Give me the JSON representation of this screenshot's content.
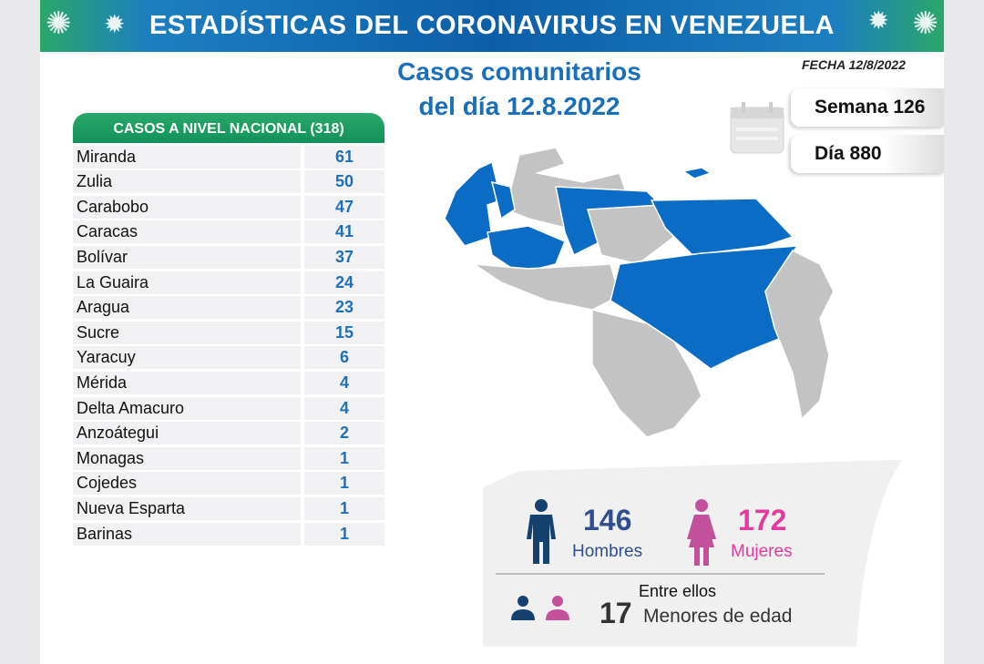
{
  "header": {
    "title": "ESTADÍSTICAS DEL CORONAVIRUS EN VENEZUELA"
  },
  "subtitle": {
    "line1": "Casos comunitarios",
    "line2": "del día 12.8.2022"
  },
  "fecha": "FECHA 12/8/2022",
  "semana": "Semana 126",
  "dia": "Día 880",
  "table": {
    "header": "CASOS A NIVEL NACIONAL  (318)",
    "rows": [
      {
        "state": "Miranda",
        "cases": "61"
      },
      {
        "state": "Zulia",
        "cases": "50"
      },
      {
        "state": "Carabobo",
        "cases": "47"
      },
      {
        "state": "Caracas",
        "cases": "41"
      },
      {
        "state": "Bolívar",
        "cases": "37"
      },
      {
        "state": "La Guaira",
        "cases": "24"
      },
      {
        "state": "Aragua",
        "cases": "23"
      },
      {
        "state": "Sucre",
        "cases": "15"
      },
      {
        "state": "Yaracuy",
        "cases": "6"
      },
      {
        "state": "Mérida",
        "cases": "4"
      },
      {
        "state": "Delta Amacuro",
        "cases": "4"
      },
      {
        "state": "Anzoátegui",
        "cases": "2"
      },
      {
        "state": "Monagas",
        "cases": "1"
      },
      {
        "state": "Cojedes",
        "cases": "1"
      },
      {
        "state": "Nueva Esparta",
        "cases": "1"
      },
      {
        "state": "Barinas",
        "cases": "1"
      }
    ]
  },
  "stats": {
    "men": "146",
    "men_label": "Hombres",
    "women": "172",
    "women_label": "Mujeres",
    "among": "Entre ellos",
    "minors": "17",
    "minors_label": "Menores de edad"
  },
  "colors": {
    "affected": "#0a6cc4",
    "unaffected": "#c3c3c3",
    "men": "#13426e",
    "women": "#c2509a",
    "women_text": "#e63aa0",
    "men_text": "#2f4d8f"
  }
}
